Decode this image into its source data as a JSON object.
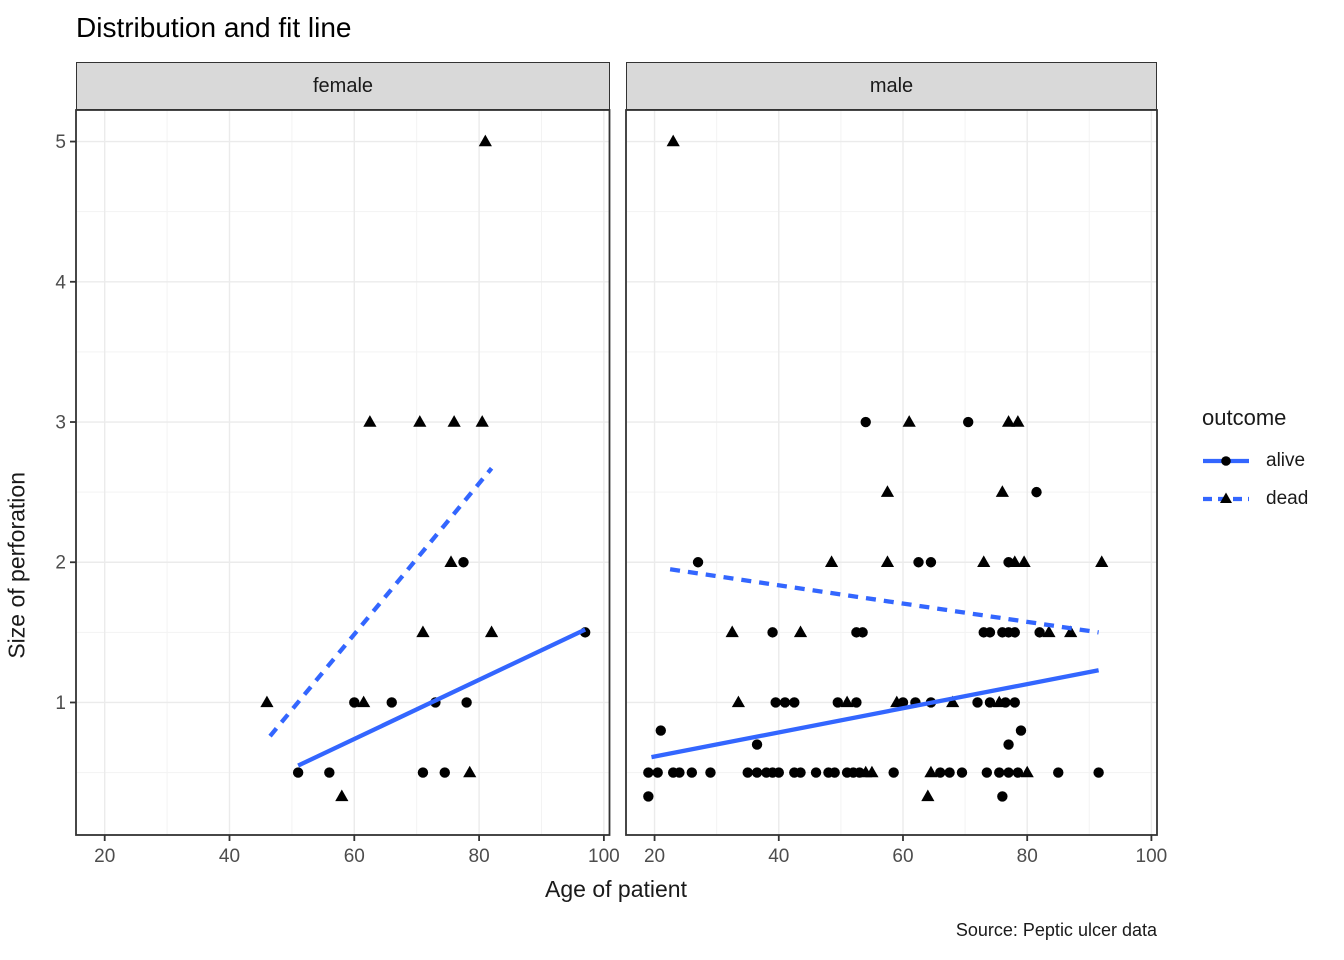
{
  "title": "Distribution and fit line",
  "axes": {
    "x_label": "Age of patient",
    "y_label": "Size of perforation"
  },
  "caption": "Source: Peptic ulcer data",
  "legend": {
    "title": "outcome",
    "entries": [
      {
        "label": "alive",
        "marker": "circle",
        "line": "solid"
      },
      {
        "label": "dead",
        "marker": "triangle",
        "line": "dashed"
      }
    ]
  },
  "colors": {
    "fit_line": "#3366FF",
    "point": "#000000",
    "strip_bg": "#d9d9d9",
    "panel_bg": "#ffffff",
    "grid_major": "#ebebeb",
    "grid_minor": "#f3f3f3",
    "panel_border": "#333333",
    "tick_label": "#4d4d4d",
    "tick_mark": "#333333"
  },
  "chart_data": {
    "type": "scatter",
    "title": "Distribution and fit line",
    "xlabel": "Age of patient",
    "ylabel": "Size of perforation",
    "x_ticks": [
      20,
      40,
      60,
      80,
      100
    ],
    "y_ticks": [
      1,
      2,
      3,
      4,
      5
    ],
    "x_minor": [
      30,
      50,
      70,
      90
    ],
    "y_minor": [
      0.5,
      1.5,
      2.5,
      3.5,
      4.5
    ],
    "xlim": [
      15.4,
      100.9
    ],
    "ylim": [
      0.055,
      5.225
    ],
    "grid": "on",
    "legend_position": "right",
    "facets": [
      {
        "label": "female",
        "series": [
          {
            "name": "alive",
            "marker": "circle",
            "points": [
              [
                77.5,
                2
              ],
              [
                97,
                1.5
              ],
              [
                60,
                1
              ],
              [
                66,
                1
              ],
              [
                73,
                1
              ],
              [
                78,
                1
              ],
              [
                51,
                0.5
              ],
              [
                56,
                0.5
              ],
              [
                71,
                0.5
              ],
              [
                74.5,
                0.5
              ]
            ]
          },
          {
            "name": "dead",
            "marker": "triangle",
            "points": [
              [
                81,
                5
              ],
              [
                62.5,
                3
              ],
              [
                70.5,
                3
              ],
              [
                76,
                3
              ],
              [
                80.5,
                3
              ],
              [
                75.5,
                2
              ],
              [
                71,
                1.5
              ],
              [
                82,
                1.5
              ],
              [
                46,
                1
              ],
              [
                61.5,
                1
              ],
              [
                78.5,
                0.5
              ],
              [
                58,
                0.33
              ]
            ]
          }
        ],
        "fit_lines": [
          {
            "name": "alive",
            "style": "solid",
            "from": [
              51,
              0.55
            ],
            "to": [
              97,
              1.52
            ]
          },
          {
            "name": "dead",
            "style": "dashed",
            "from": [
              46.5,
              0.76
            ],
            "to": [
              82,
              2.67
            ]
          }
        ]
      },
      {
        "label": "male",
        "series": [
          {
            "name": "alive",
            "marker": "circle",
            "points": [
              [
                54,
                3
              ],
              [
                70.5,
                3
              ],
              [
                81.5,
                2.5
              ],
              [
                27,
                2
              ],
              [
                62.5,
                2
              ],
              [
                64.5,
                2
              ],
              [
                77,
                2
              ],
              [
                39,
                1.5
              ],
              [
                52.5,
                1.5
              ],
              [
                53.5,
                1.5
              ],
              [
                73,
                1.5
              ],
              [
                74,
                1.5
              ],
              [
                76,
                1.5
              ],
              [
                77,
                1.5
              ],
              [
                78,
                1.5
              ],
              [
                82,
                1.5
              ],
              [
                39.5,
                1
              ],
              [
                41,
                1
              ],
              [
                42.5,
                1
              ],
              [
                49.5,
                1
              ],
              [
                52.5,
                1
              ],
              [
                60,
                1
              ],
              [
                62,
                1
              ],
              [
                64.5,
                1
              ],
              [
                72,
                1
              ],
              [
                74,
                1
              ],
              [
                76.5,
                1
              ],
              [
                78,
                1
              ],
              [
                21,
                0.8
              ],
              [
                79,
                0.8
              ],
              [
                36.5,
                0.7
              ],
              [
                77,
                0.7
              ],
              [
                19,
                0.5
              ],
              [
                20.5,
                0.5
              ],
              [
                23,
                0.5
              ],
              [
                24,
                0.5
              ],
              [
                26,
                0.5
              ],
              [
                29,
                0.5
              ],
              [
                35,
                0.5
              ],
              [
                36.5,
                0.5
              ],
              [
                38,
                0.5
              ],
              [
                39,
                0.5
              ],
              [
                40,
                0.5
              ],
              [
                42.5,
                0.5
              ],
              [
                43.5,
                0.5
              ],
              [
                46,
                0.5
              ],
              [
                48,
                0.5
              ],
              [
                49,
                0.5
              ],
              [
                51,
                0.5
              ],
              [
                52,
                0.5
              ],
              [
                53,
                0.5
              ],
              [
                58.5,
                0.5
              ],
              [
                66,
                0.5
              ],
              [
                67.5,
                0.5
              ],
              [
                69.5,
                0.5
              ],
              [
                73.5,
                0.5
              ],
              [
                75.5,
                0.5
              ],
              [
                77,
                0.5
              ],
              [
                78.5,
                0.5
              ],
              [
                85,
                0.5
              ],
              [
                91.5,
                0.5
              ],
              [
                19,
                0.33
              ],
              [
                76,
                0.33
              ]
            ]
          },
          {
            "name": "dead",
            "marker": "triangle",
            "points": [
              [
                23,
                5
              ],
              [
                61,
                3
              ],
              [
                77,
                3
              ],
              [
                78.5,
                3
              ],
              [
                57.5,
                2.5
              ],
              [
                76,
                2.5
              ],
              [
                48.5,
                2
              ],
              [
                57.5,
                2
              ],
              [
                73,
                2
              ],
              [
                78,
                2
              ],
              [
                79.5,
                2
              ],
              [
                92,
                2
              ],
              [
                32.5,
                1.5
              ],
              [
                43.5,
                1.5
              ],
              [
                83.5,
                1.5
              ],
              [
                87,
                1.5
              ],
              [
                33.5,
                1
              ],
              [
                51,
                1
              ],
              [
                59,
                1
              ],
              [
                68,
                1
              ],
              [
                75.5,
                1
              ],
              [
                54,
                0.5
              ],
              [
                55,
                0.5
              ],
              [
                64.5,
                0.5
              ],
              [
                80,
                0.5
              ],
              [
                64,
                0.33
              ]
            ]
          }
        ],
        "fit_lines": [
          {
            "name": "alive",
            "style": "solid",
            "from": [
              19.5,
              0.61
            ],
            "to": [
              91.5,
              1.23
            ]
          },
          {
            "name": "dead",
            "style": "dashed",
            "from": [
              22.5,
              1.95
            ],
            "to": [
              91.5,
              1.5
            ]
          }
        ]
      }
    ]
  }
}
